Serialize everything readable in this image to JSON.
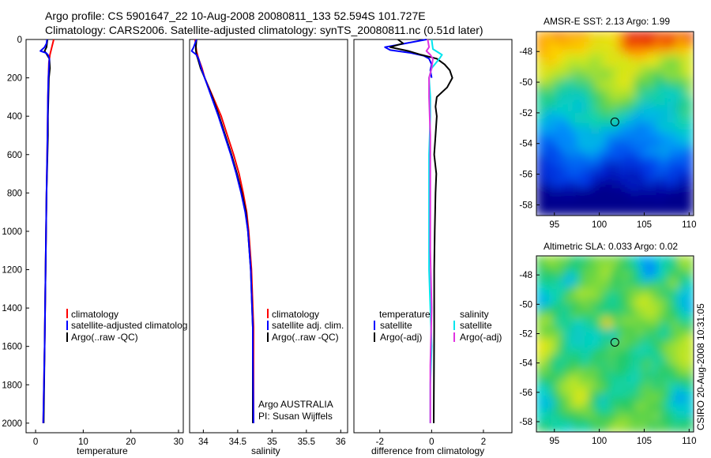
{
  "header": {
    "line1": "Argo profile: CS 5901647_22 10-Aug-2008 20080811_133 52.594S 101.727E",
    "line2": "Climatology: CARS2006. Satellite-adjusted climatology: synTS_20080811.nc (0.51d later)"
  },
  "side_label": "CSIRO 20-Aug-2008 10:31:05",
  "chart_data": [
    {
      "id": "temperature",
      "type": "line",
      "xlabel": "temperature",
      "ylabel": "",
      "xlim": [
        -2,
        31
      ],
      "ylim": [
        2050,
        0
      ],
      "xticks": [
        0,
        10,
        20,
        30
      ],
      "yticks": [
        0,
        200,
        400,
        600,
        800,
        1000,
        1200,
        1400,
        1600,
        1800,
        2000
      ],
      "legend": [
        "climatology",
        "satellite-adjusted climatolog",
        "Argo(..raw -QC)"
      ],
      "series": [
        {
          "name": "climatology",
          "color": "#ff0000",
          "depth": [
            0,
            20,
            50,
            80,
            120,
            200,
            300,
            500,
            800,
            1200,
            1600,
            2000
          ],
          "values": [
            3.8,
            3.6,
            3.3,
            3.0,
            2.8,
            2.7,
            2.6,
            2.5,
            2.3,
            2.1,
            1.9,
            1.6
          ]
        },
        {
          "name": "Argo(..raw -QC)",
          "color": "#000000",
          "depth": [
            0,
            20,
            40,
            60,
            80,
            100,
            150,
            200,
            300,
            400,
            500,
            600,
            800,
            1000,
            1200,
            1400,
            1600,
            1800,
            2000
          ],
          "values": [
            2.5,
            2.4,
            2.3,
            1.9,
            2.4,
            2.9,
            3.0,
            2.8,
            2.7,
            2.6,
            2.6,
            2.5,
            2.3,
            2.2,
            2.1,
            2.0,
            1.9,
            1.8,
            1.7
          ]
        },
        {
          "name": "satellite-adjusted climatolog",
          "color": "#0000ff",
          "depth": [
            0,
            20,
            40,
            60,
            70,
            80,
            100,
            150,
            200,
            300,
            500,
            800,
            1200,
            1600,
            2000
          ],
          "values": [
            2.4,
            2.3,
            1.9,
            1.0,
            2.2,
            2.6,
            2.9,
            2.8,
            2.7,
            2.6,
            2.5,
            2.3,
            2.1,
            1.9,
            1.6
          ]
        }
      ]
    },
    {
      "id": "salinity",
      "type": "line",
      "xlabel": "salinity",
      "ylabel": "",
      "xlim": [
        33.8,
        36.1
      ],
      "ylim": [
        2050,
        0
      ],
      "xticks": [
        34,
        34.5,
        35,
        35.5,
        36
      ],
      "legend": [
        "climatology",
        "satellite adj. clim.",
        "Argo(..raw -QC)"
      ],
      "annotations": [
        "Argo AUSTRALIA",
        "PI: Susan Wijffels"
      ],
      "series": [
        {
          "name": "climatology",
          "color": "#ff0000",
          "depth": [
            0,
            60,
            100,
            150,
            200,
            300,
            400,
            500,
            600,
            700,
            800,
            900,
            1000,
            1200,
            1400,
            1500,
            1600,
            2000
          ],
          "values": [
            33.88,
            33.9,
            33.93,
            33.98,
            34.02,
            34.14,
            34.26,
            34.35,
            34.44,
            34.52,
            34.58,
            34.63,
            34.66,
            34.7,
            34.72,
            34.73,
            34.73,
            34.73
          ]
        },
        {
          "name": "Argo(..raw -QC)",
          "color": "#000000",
          "depth": [
            0,
            50,
            80,
            100,
            150,
            200,
            300,
            400,
            500,
            600,
            700,
            800,
            900,
            1000,
            1200,
            1400,
            1500,
            1600,
            2000
          ],
          "values": [
            33.9,
            33.89,
            33.9,
            33.92,
            33.96,
            34.02,
            34.13,
            34.23,
            34.32,
            34.41,
            34.49,
            34.56,
            34.62,
            34.65,
            34.69,
            34.71,
            34.72,
            34.72,
            34.72
          ]
        },
        {
          "name": "satellite adj. clim.",
          "color": "#0000ff",
          "depth": [
            0,
            40,
            60,
            80,
            100,
            150,
            200,
            300,
            400,
            500,
            600,
            700,
            800,
            900,
            1000,
            1200,
            1400,
            1500,
            1600,
            2000
          ],
          "values": [
            33.9,
            33.86,
            33.83,
            33.9,
            33.93,
            33.97,
            34.02,
            34.12,
            34.22,
            34.31,
            34.4,
            34.48,
            34.55,
            34.61,
            34.65,
            34.69,
            34.71,
            34.72,
            34.72,
            34.73
          ]
        }
      ]
    },
    {
      "id": "difference",
      "type": "line",
      "xlabel": "difference from climatology",
      "ylabel": "",
      "xlim": [
        -3,
        3.1
      ],
      "ylim": [
        2050,
        0
      ],
      "xticks": [
        -2,
        0,
        2
      ],
      "legend_groups": [
        {
          "title": "temperature",
          "items": [
            "satellite",
            "Argo(-adj)"
          ]
        },
        {
          "title": "salinity",
          "items": [
            "satellite",
            "Argo(-adj)"
          ]
        }
      ],
      "series": [
        {
          "name": "temperature satellite",
          "color": "#0000ff",
          "depth": [
            0,
            20,
            40,
            55,
            70,
            85,
            100,
            130,
            160,
            200
          ],
          "values": [
            -0.2,
            -1.0,
            -1.8,
            -1.6,
            -0.8,
            -0.3,
            -0.1,
            0.0,
            -0.05,
            0.0
          ]
        },
        {
          "name": "temperature Argo(-adj)",
          "color": "#000000",
          "depth": [
            0,
            20,
            40,
            60,
            80,
            100,
            130,
            160,
            200,
            250,
            300,
            350,
            400,
            500,
            600,
            700,
            800,
            1000,
            1200,
            1500,
            2000
          ],
          "values": [
            -1.3,
            -1.1,
            -1.6,
            -0.9,
            -0.4,
            0.2,
            0.5,
            0.7,
            0.8,
            0.6,
            0.2,
            0.15,
            0.2,
            0.15,
            0.1,
            0.18,
            0.15,
            0.12,
            0.1,
            0.1,
            0.08
          ]
        },
        {
          "name": "salinity satellite",
          "color": "#00e5ee",
          "depth": [
            0,
            50,
            80,
            100,
            150,
            200,
            300,
            400,
            600,
            800,
            1000,
            1200,
            1400,
            1600,
            1800,
            2000
          ],
          "values": [
            0.0,
            0.05,
            0.4,
            0.3,
            0.0,
            -0.1,
            -0.05,
            -0.05,
            -0.1,
            -0.1,
            -0.1,
            -0.1,
            -0.05,
            0.0,
            -0.05,
            -0.05
          ]
        },
        {
          "name": "salinity Argo(-adj)",
          "color": "#e032e0",
          "depth": [
            0,
            40,
            60,
            80,
            100,
            150,
            200,
            300,
            500,
            700,
            900,
            1100,
            1400,
            1700,
            2000
          ],
          "values": [
            -0.15,
            -0.1,
            -0.2,
            -0.05,
            0.05,
            0.0,
            -0.1,
            -0.1,
            -0.05,
            -0.05,
            -0.05,
            -0.05,
            0.0,
            -0.05,
            -0.05
          ]
        }
      ]
    },
    {
      "id": "sst_map",
      "type": "heatmap",
      "title": "AMSR-E SST: 2.13 Argo: 1.99",
      "xlim": [
        93,
        110.5
      ],
      "ylim": [
        -58.7,
        -46.7
      ],
      "xticks": [
        95,
        100,
        105,
        110
      ],
      "yticks": [
        -48,
        -50,
        -52,
        -54,
        -56,
        -58
      ],
      "marker": {
        "lon": 101.73,
        "lat": -52.59
      }
    },
    {
      "id": "sla_map",
      "type": "heatmap",
      "title": "Altimetric SLA: 0.033 Argo: 0.02",
      "xlim": [
        93,
        110.5
      ],
      "ylim": [
        -58.7,
        -46.7
      ],
      "xticks": [
        95,
        100,
        105,
        110
      ],
      "yticks": [
        -48,
        -50,
        -52,
        -54,
        -56,
        -58
      ],
      "marker": {
        "lon": 101.73,
        "lat": -52.59
      }
    }
  ]
}
